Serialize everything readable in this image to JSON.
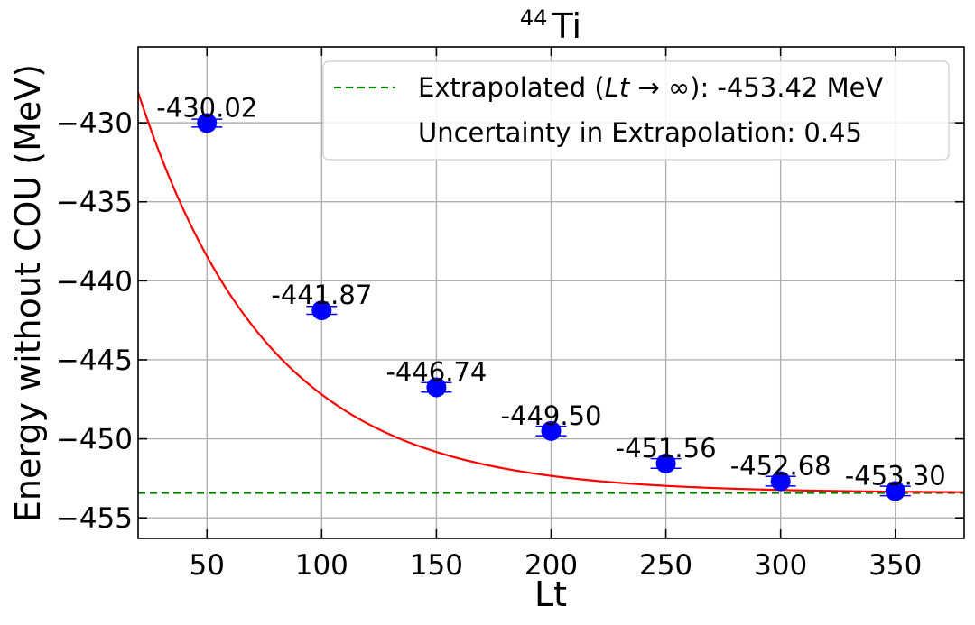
{
  "chart_data": {
    "type": "scatter",
    "title": {
      "superscript": "44",
      "base": "Ti"
    },
    "xlabel": "Lt",
    "ylabel": "Energy without COU (MeV)",
    "xlim": [
      20,
      380
    ],
    "ylim": [
      -456.3,
      -425.2
    ],
    "xticks": [
      50,
      100,
      150,
      200,
      250,
      300,
      350
    ],
    "yticks": [
      -430,
      -435,
      -440,
      -445,
      -450,
      -455
    ],
    "xtick_labels": [
      "50",
      "100",
      "150",
      "200",
      "250",
      "300",
      "350"
    ],
    "ytick_labels": [
      "−430",
      "−435",
      "−440",
      "−445",
      "−450",
      "−455"
    ],
    "grid": true,
    "points": {
      "x": [
        50,
        100,
        150,
        200,
        250,
        300,
        350
      ],
      "y": [
        -430.02,
        -441.87,
        -446.74,
        -449.5,
        -451.56,
        -452.68,
        -453.3
      ],
      "yerr": [
        0.25,
        0.25,
        0.3,
        0.3,
        0.3,
        0.3,
        0.3
      ],
      "labels": [
        "-430.02",
        "-441.87",
        "-446.74",
        "-449.50",
        "-451.56",
        "-452.68",
        "-453.30"
      ],
      "color": "#0000ff"
    },
    "fit_curve": {
      "model": "E(Lt) = Einf + A*exp(-Lt/tau)",
      "Einf": -453.42,
      "A": 36.0,
      "tau": 57.0,
      "color": "#ff0000"
    },
    "extrapolation_line": {
      "y": -453.42,
      "color": "#008000",
      "style": "dashed"
    },
    "legend": {
      "placement": "top-right",
      "entries": [
        {
          "prefix": "Extrapolated (",
          "italic": "Lt",
          "arrow": " → ∞",
          "suffix": "): -453.42 MeV",
          "line": "dashed-green"
        },
        {
          "text": "Uncertainty in Extrapolation: 0.45",
          "line": "none"
        }
      ]
    }
  }
}
